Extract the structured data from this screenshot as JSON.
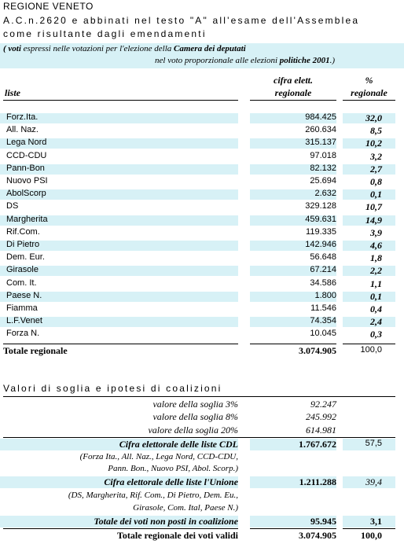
{
  "header": {
    "title": "REGIONE VENETO",
    "line1": "A.C.n.2620 e abbinati nel testo \"A\" all'esame dell'Assemblea",
    "line2": "come risultante dagli emendamenti",
    "note1_pre": "( voti",
    "note1_mid": " espressi nelle votazioni per l'elezione della ",
    "note1_bold": "Camera dei deputati",
    "note2_pre": "nel voto proporzionale alle elezioni ",
    "note2_bold": "politiche 2001",
    "note2_post": ".)"
  },
  "columns": {
    "liste": "liste",
    "cifra_1": "cifra elett.",
    "cifra_2": "regionale",
    "pct_1": "%",
    "pct_2": "regionale"
  },
  "rows": [
    {
      "name": "Forz.Ita.",
      "value": "984.425",
      "pct": "32,0",
      "hl": true
    },
    {
      "name": "All. Naz.",
      "value": "260.634",
      "pct": "8,5",
      "hl": false
    },
    {
      "name": "Lega Nord",
      "value": "315.137",
      "pct": "10,2",
      "hl": true
    },
    {
      "name": "CCD-CDU",
      "value": "97.018",
      "pct": "3,2",
      "hl": false
    },
    {
      "name": "Pann-Bon",
      "value": "82.132",
      "pct": "2,7",
      "hl": true
    },
    {
      "name": "Nuovo PSI",
      "value": "25.694",
      "pct": "0,8",
      "hl": false
    },
    {
      "name": "AbolScorp",
      "value": "2.632",
      "pct": "0,1",
      "hl": true
    },
    {
      "name": "DS",
      "value": "329.128",
      "pct": "10,7",
      "hl": false
    },
    {
      "name": "Margherita",
      "value": "459.631",
      "pct": "14,9",
      "hl": true
    },
    {
      "name": "Rif.Com.",
      "value": "119.335",
      "pct": "3,9",
      "hl": false
    },
    {
      "name": "Di Pietro",
      "value": "142.946",
      "pct": "4,6",
      "hl": true
    },
    {
      "name": "Dem. Eur.",
      "value": "56.648",
      "pct": "1,8",
      "hl": false
    },
    {
      "name": "Girasole",
      "value": "67.214",
      "pct": "2,2",
      "hl": true
    },
    {
      "name": "Com. It.",
      "value": "34.586",
      "pct": "1,1",
      "hl": false
    },
    {
      "name": "Paese N.",
      "value": "1.800",
      "pct": "0,1",
      "hl": true
    },
    {
      "name": "Fiamma",
      "value": "11.546",
      "pct": "0,4",
      "hl": false
    },
    {
      "name": "L.F.Venet",
      "value": "74.354",
      "pct": "2,4",
      "hl": true
    },
    {
      "name": "Forza N.",
      "value": "10.045",
      "pct": "0,3",
      "hl": false
    }
  ],
  "totale": {
    "label": "Totale regionale",
    "value": "3.074.905",
    "pct": "100,0"
  },
  "section2": {
    "title": "Valori di soglia e ipotesi di coalizioni",
    "soglia3_label": "valore della soglia 3%",
    "soglia3_value": "92.247",
    "soglia8_label": "valore della soglia 8%",
    "soglia8_value": "245.992",
    "soglia20_label": "valore della soglia 20%",
    "soglia20_value": "614.981",
    "cdl_label": "Cifra elettorale delle liste CDL",
    "cdl_value": "1.767.672",
    "cdl_pct": "57,5",
    "cdl_note1": "(Forza Ita., All. Naz., Lega Nord, CCD-CDU,",
    "cdl_note2": "Pann. Bon., Nuovo PSI, Abol. Scorp.)",
    "unione_label": "Cifra elettorale delle liste l'Unione",
    "unione_value": "1.211.288",
    "unione_pct": "39,4",
    "unione_note1": "(DS, Margherita, Rif. Com., Di Pietro, Dem. Eu.,",
    "unione_note2": "Girasole, Com. Ital, Paese N.)",
    "nonposti_label": "Totale dei voti non posti in coalizione",
    "nonposti_value": "95.945",
    "nonposti_pct": "3,1",
    "validi_label": "Totale regionale dei voti validi",
    "validi_value": "3.074.905",
    "validi_pct": "100,0"
  },
  "colors": {
    "highlight": "#d7f1f6"
  }
}
